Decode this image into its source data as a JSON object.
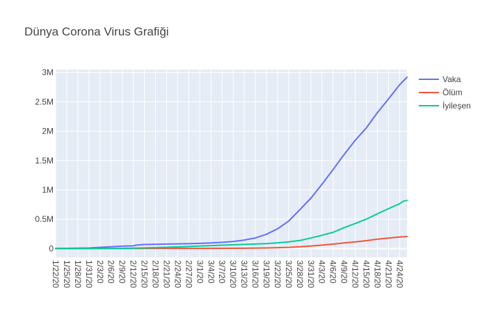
{
  "chart_data": {
    "type": "line",
    "title": "Dünya Corona Virus Grafiği",
    "xlabel": "",
    "ylabel": "",
    "ylim": [
      -150000,
      3050000
    ],
    "x_ticks": [
      "1/22/20",
      "1/25/20",
      "1/28/20",
      "1/31/20",
      "2/3/20",
      "2/6/20",
      "2/9/20",
      "2/12/20",
      "2/15/20",
      "2/18/20",
      "2/21/20",
      "2/24/20",
      "2/27/20",
      "3/1/20",
      "3/4/20",
      "3/7/20",
      "3/10/20",
      "3/13/20",
      "3/16/20",
      "3/19/20",
      "3/22/20",
      "3/25/20",
      "3/28/20",
      "3/31/20",
      "4/3/20",
      "4/6/20",
      "4/9/20",
      "4/12/20",
      "4/15/20",
      "4/18/20",
      "4/21/20",
      "4/24/20"
    ],
    "y_ticks": [
      {
        "value": 0,
        "label": "0"
      },
      {
        "value": 500000,
        "label": "0.5M"
      },
      {
        "value": 1000000,
        "label": "1M"
      },
      {
        "value": 1500000,
        "label": "1.5M"
      },
      {
        "value": 2000000,
        "label": "2M"
      },
      {
        "value": 2500000,
        "label": "2.5M"
      },
      {
        "value": 3000000,
        "label": "3M"
      }
    ],
    "grid": true,
    "legend_position": "top-right",
    "background_color": "#e5ecf6",
    "series": [
      {
        "name": "Vaka",
        "color": "#636efa",
        "points": [
          [
            "1/22/20",
            555
          ],
          [
            "1/31/20",
            9900
          ],
          [
            "2/6/20",
            30800
          ],
          [
            "2/9/20",
            40500
          ],
          [
            "2/12/20",
            45200
          ],
          [
            "2/13/20",
            60400
          ],
          [
            "2/15/20",
            69000
          ],
          [
            "2/18/20",
            73300
          ],
          [
            "2/21/20",
            76800
          ],
          [
            "2/24/20",
            79600
          ],
          [
            "2/27/20",
            82800
          ],
          [
            "3/1/20",
            88400
          ],
          [
            "3/4/20",
            95100
          ],
          [
            "3/7/20",
            105800
          ],
          [
            "3/10/20",
            119000
          ],
          [
            "3/13/20",
            145000
          ],
          [
            "3/16/20",
            181000
          ],
          [
            "3/19/20",
            243000
          ],
          [
            "3/22/20",
            336000
          ],
          [
            "3/25/20",
            467000
          ],
          [
            "3/28/20",
            660000
          ],
          [
            "3/31/20",
            857000
          ],
          [
            "4/3/20",
            1095000
          ],
          [
            "4/6/20",
            1346000
          ],
          [
            "4/9/20",
            1603000
          ],
          [
            "4/12/20",
            1845000
          ],
          [
            "4/15/20",
            2056000
          ],
          [
            "4/18/20",
            2316000
          ],
          [
            "4/21/20",
            2549000
          ],
          [
            "4/24/20",
            2790000
          ],
          [
            "4/26/20",
            2920000
          ]
        ]
      },
      {
        "name": "Ölüm",
        "color": "#ef553b",
        "points": [
          [
            "1/22/20",
            17
          ],
          [
            "2/12/20",
            1100
          ],
          [
            "3/1/20",
            3000
          ],
          [
            "3/13/20",
            5400
          ],
          [
            "3/19/20",
            9800
          ],
          [
            "3/22/20",
            14600
          ],
          [
            "3/25/20",
            21200
          ],
          [
            "3/28/20",
            30900
          ],
          [
            "3/31/20",
            42100
          ],
          [
            "4/3/20",
            58800
          ],
          [
            "4/6/20",
            74600
          ],
          [
            "4/9/20",
            95700
          ],
          [
            "4/12/20",
            114000
          ],
          [
            "4/15/20",
            134000
          ],
          [
            "4/18/20",
            159000
          ],
          [
            "4/21/20",
            178000
          ],
          [
            "4/24/20",
            197000
          ],
          [
            "4/26/20",
            206000
          ]
        ]
      },
      {
        "name": "İyileşen",
        "color": "#00cc96",
        "points": [
          [
            "1/22/20",
            28
          ],
          [
            "2/6/20",
            1500
          ],
          [
            "2/12/20",
            6700
          ],
          [
            "2/18/20",
            16000
          ],
          [
            "2/24/20",
            27900
          ],
          [
            "3/1/20",
            42700
          ],
          [
            "3/7/20",
            57600
          ],
          [
            "3/13/20",
            70500
          ],
          [
            "3/19/20",
            85000
          ],
          [
            "3/22/20",
            97900
          ],
          [
            "3/25/20",
            113000
          ],
          [
            "3/28/20",
            137000
          ],
          [
            "3/31/20",
            180000
          ],
          [
            "4/3/20",
            226000
          ],
          [
            "4/6/20",
            277000
          ],
          [
            "4/9/20",
            356000
          ],
          [
            "4/12/20",
            427000
          ],
          [
            "4/15/20",
            501000
          ],
          [
            "4/18/20",
            592000
          ],
          [
            "4/21/20",
            680000
          ],
          [
            "4/24/20",
            764000
          ],
          [
            "4/25/20",
            806000
          ],
          [
            "4/26/20",
            820000
          ]
        ]
      }
    ]
  }
}
